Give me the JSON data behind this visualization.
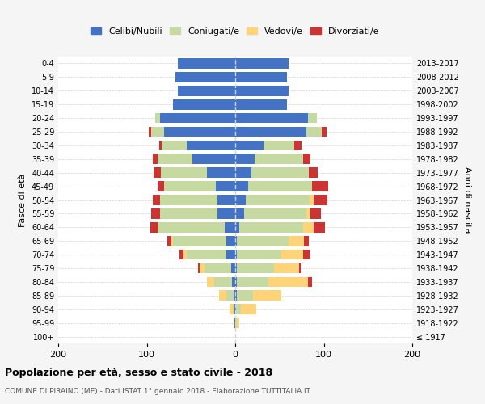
{
  "age_groups": [
    "100+",
    "95-99",
    "90-94",
    "85-89",
    "80-84",
    "75-79",
    "70-74",
    "65-69",
    "60-64",
    "55-59",
    "50-54",
    "45-49",
    "40-44",
    "35-39",
    "30-34",
    "25-29",
    "20-24",
    "15-19",
    "10-14",
    "5-9",
    "0-4"
  ],
  "birth_years": [
    "≤ 1917",
    "1918-1922",
    "1923-1927",
    "1928-1932",
    "1933-1937",
    "1938-1942",
    "1943-1947",
    "1948-1952",
    "1953-1957",
    "1958-1962",
    "1963-1967",
    "1968-1972",
    "1973-1977",
    "1978-1982",
    "1983-1987",
    "1988-1992",
    "1993-1997",
    "1998-2002",
    "2003-2007",
    "2008-2012",
    "2013-2017"
  ],
  "maschi": {
    "celibi": [
      0,
      1,
      1,
      2,
      4,
      5,
      10,
      10,
      12,
      20,
      20,
      22,
      32,
      48,
      55,
      80,
      85,
      70,
      65,
      68,
      65
    ],
    "coniugati": [
      0,
      0,
      2,
      8,
      20,
      30,
      45,
      60,
      75,
      65,
      65,
      58,
      52,
      40,
      28,
      15,
      5,
      0,
      0,
      0,
      0
    ],
    "vedovi": [
      0,
      1,
      3,
      8,
      8,
      5,
      3,
      2,
      1,
      0,
      0,
      0,
      0,
      0,
      0,
      0,
      0,
      0,
      0,
      0,
      0
    ],
    "divorziati": [
      0,
      0,
      0,
      0,
      0,
      2,
      5,
      5,
      8,
      10,
      8,
      8,
      8,
      5,
      3,
      3,
      0,
      0,
      0,
      0,
      0
    ]
  },
  "femmine": {
    "nubili": [
      0,
      0,
      1,
      2,
      2,
      2,
      2,
      2,
      5,
      10,
      12,
      15,
      18,
      22,
      32,
      80,
      82,
      58,
      60,
      58,
      60
    ],
    "coniugate": [
      0,
      2,
      5,
      18,
      35,
      42,
      50,
      58,
      72,
      70,
      72,
      72,
      65,
      55,
      35,
      18,
      10,
      0,
      0,
      0,
      0
    ],
    "vedove": [
      0,
      3,
      18,
      32,
      45,
      28,
      25,
      18,
      12,
      5,
      5,
      0,
      0,
      0,
      0,
      0,
      0,
      0,
      0,
      0,
      0
    ],
    "divorziate": [
      0,
      0,
      0,
      0,
      5,
      2,
      8,
      5,
      12,
      12,
      15,
      18,
      10,
      8,
      8,
      5,
      0,
      0,
      0,
      0,
      0
    ]
  },
  "colors": {
    "celibi_nubili": "#4472c4",
    "coniugati": "#c5d9a0",
    "vedovi": "#ffd479",
    "divorziati": "#cc3333"
  },
  "title": "Popolazione per età, sesso e stato civile - 2018",
  "subtitle": "COMUNE DI PIRAINO (ME) - Dati ISTAT 1° gennaio 2018 - Elaborazione TUTTITALIA.IT",
  "ylabel_left": "Fasce di età",
  "ylabel_right": "Anni di nascita",
  "xlabel": "",
  "legend_labels": [
    "Celibi/Nubili",
    "Coniugati/e",
    "Vedovi/e",
    "Divorziati/e"
  ],
  "xlim": 200,
  "bg_color": "#f5f5f5",
  "plot_bg_color": "#ffffff"
}
